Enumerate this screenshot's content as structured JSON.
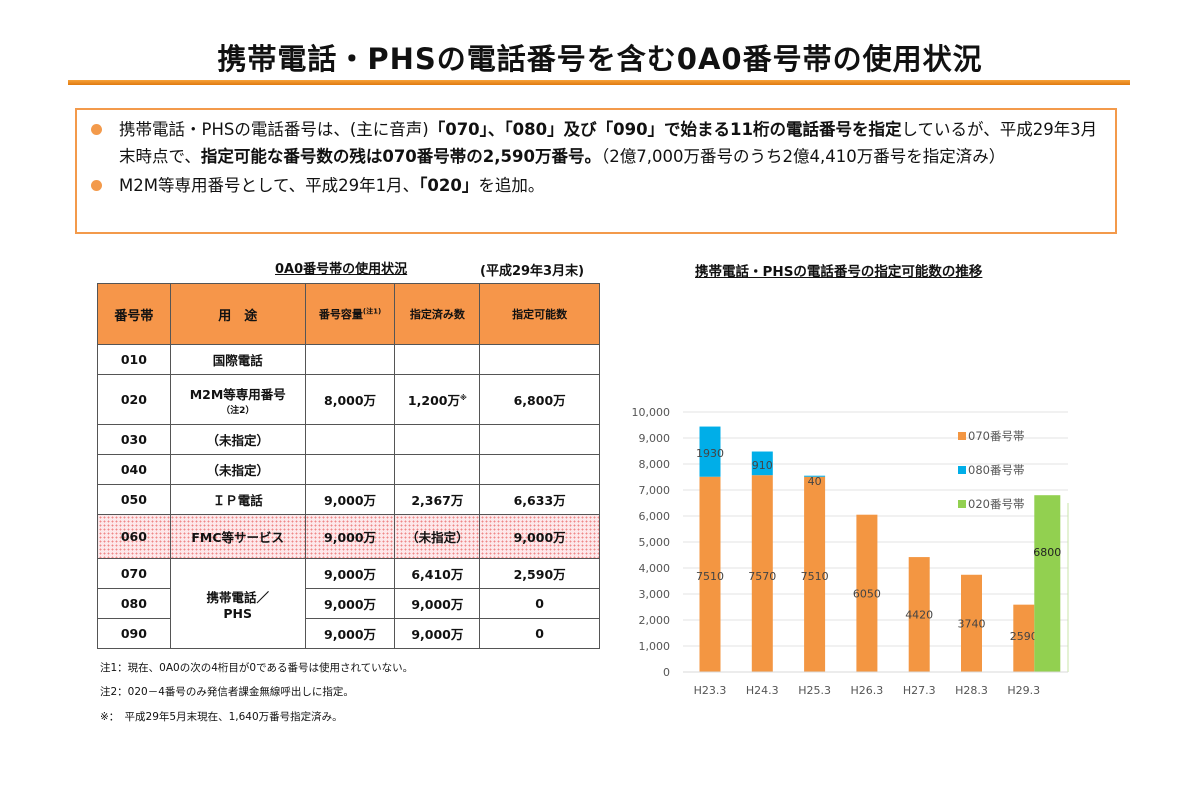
{
  "title": "携帯電話・PHSの電話番号を含む0A0番号帯の使用状況",
  "bullets": [
    {
      "segments": [
        {
          "t": "携帯電話・PHSの電話番号は、(主に音声)",
          "b": false
        },
        {
          "t": "「070」、「080」及び「090」で始まる11桁の電話番号を指定",
          "b": true
        },
        {
          "t": "しているが、平成29年3月末時点で、",
          "b": false
        },
        {
          "t": "指定可能な番号数の残は070番号帯の2,590万番号。",
          "b": true
        },
        {
          "t": "（2億7,000万番号のうち2億4,410万番号を指定済み）",
          "b": false
        }
      ]
    },
    {
      "segments": [
        {
          "t": "M2M等専用番号として、平成29年1月、",
          "b": false
        },
        {
          "t": "「020」",
          "b": true
        },
        {
          "t": "を追加。",
          "b": false
        }
      ]
    }
  ],
  "table": {
    "title": "0A0番号帯の使用状況",
    "date": "(平成29年3月末)",
    "headers": [
      "番号帯",
      "用　途",
      "番号容量",
      "指定済み数",
      "指定可能数"
    ],
    "header_note": "(注1)",
    "rows": [
      {
        "band": "010",
        "use": "国際電話",
        "cap": "",
        "used": "",
        "avail": ""
      },
      {
        "band": "020",
        "use": "M2M等専用番号",
        "use_note": "（注2）",
        "cap": "8,000万",
        "used": "1,200万",
        "used_mark": "※",
        "avail": "6,800万"
      },
      {
        "band": "030",
        "use": "（未指定）",
        "cap": "",
        "used": "",
        "avail": ""
      },
      {
        "band": "040",
        "use": "（未指定）",
        "cap": "",
        "used": "",
        "avail": ""
      },
      {
        "band": "050",
        "use": "ＩＰ電話",
        "cap": "9,000万",
        "used": "2,367万",
        "avail": "6,633万"
      },
      {
        "band": "060",
        "use": "FMC等サービス",
        "cap": "9,000万",
        "used": "（未指定）",
        "avail": "9,000万"
      },
      {
        "band": "070",
        "use": "携帯電話／PHS",
        "cap": "9,000万",
        "used": "6,410万",
        "avail": "2,590万"
      },
      {
        "band": "080",
        "use": "",
        "cap": "9,000万",
        "used": "9,000万",
        "avail": "0"
      },
      {
        "band": "090",
        "use": "",
        "cap": "9,000万",
        "used": "9,000万",
        "avail": "0"
      }
    ],
    "footnotes": [
      "注1：現在、0A0の次の4桁目が0である番号は使用されていない。",
      "注2：020－4番号のみ発信者課金無線呼出しに指定。",
      "※：　平成29年5月末現在、1,640万番号指定済み。"
    ]
  },
  "chart_data": {
    "type": "bar",
    "title": "携帯電話・PHSの電話番号の指定可能数の推移",
    "categories": [
      "H23.3",
      "H24.3",
      "H25.3",
      "H26.3",
      "H27.3",
      "H28.3",
      "H29.3"
    ],
    "series": [
      {
        "name": "070番号帯",
        "color": "#f39642",
        "values": [
          7510,
          7570,
          7510,
          6050,
          4420,
          3740,
          2590
        ]
      },
      {
        "name": "080番号帯",
        "color": "#00aee8",
        "values": [
          1930,
          910,
          40,
          0,
          0,
          0,
          0
        ]
      },
      {
        "name": "020番号帯",
        "color": "#92d050",
        "values": [
          null,
          null,
          null,
          null,
          null,
          null,
          6800
        ]
      }
    ],
    "ylim": [
      0,
      10000
    ],
    "yticks": [
      "0",
      "1,000",
      "2,000",
      "3,000",
      "4,000",
      "5,000",
      "6,000",
      "7,000",
      "8,000",
      "9,000",
      "10,000"
    ],
    "grid": true,
    "legend": "right",
    "stacked": true
  }
}
